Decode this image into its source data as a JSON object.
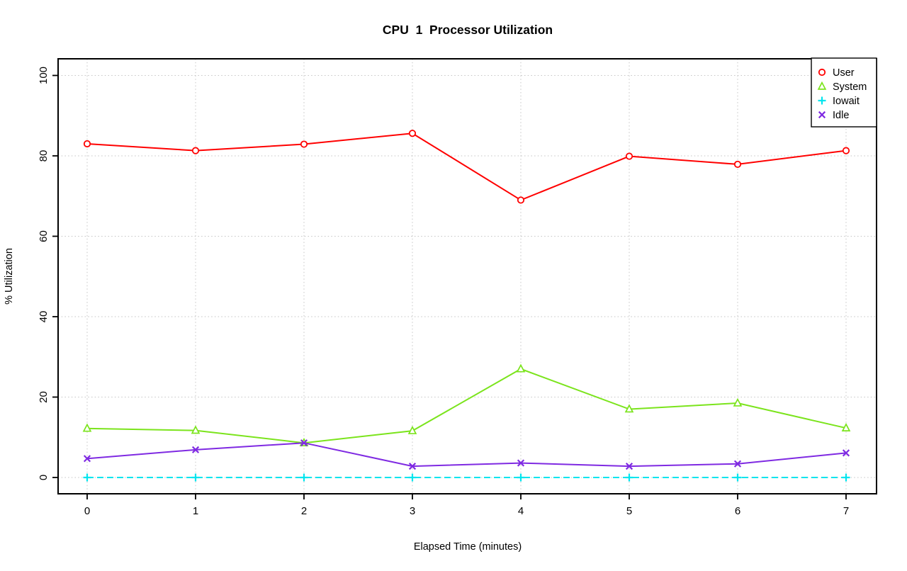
{
  "page": {
    "background": "#ffffff"
  },
  "chart_data": {
    "type": "line",
    "title": "CPU  1  Processor Utilization",
    "xlabel": "Elapsed Time (minutes)",
    "ylabel": "% Utilization",
    "x": [
      0,
      1,
      2,
      3,
      4,
      5,
      6,
      7
    ],
    "xlim": [
      0,
      7
    ],
    "ylim": [
      0,
      100
    ],
    "yticks": [
      0,
      20,
      40,
      60,
      80,
      100
    ],
    "grid": "dotted",
    "grid_color": "#c4c4c4",
    "axis_color": "#000000",
    "legend_position": "top-right",
    "legend_border_color": "#000000",
    "series": [
      {
        "name": "User",
        "color": "#ff0000",
        "marker": "circle",
        "line": "solid",
        "values": [
          83,
          81.3,
          82.9,
          85.6,
          69,
          79.9,
          77.9,
          81.3
        ]
      },
      {
        "name": "System",
        "color": "#7be41c",
        "marker": "triangle",
        "line": "solid",
        "values": [
          12.2,
          11.7,
          8.6,
          11.6,
          27,
          17,
          18.5,
          12.3
        ]
      },
      {
        "name": "Iowait",
        "color": "#00e5ee",
        "marker": "plus",
        "line": "dashed",
        "values": [
          0,
          0,
          0,
          0,
          0,
          0,
          0,
          0
        ]
      },
      {
        "name": "Idle",
        "color": "#7f2ae2",
        "marker": "x",
        "line": "solid",
        "values": [
          4.7,
          6.9,
          8.6,
          2.8,
          3.6,
          2.8,
          3.4,
          6.1
        ]
      }
    ]
  }
}
